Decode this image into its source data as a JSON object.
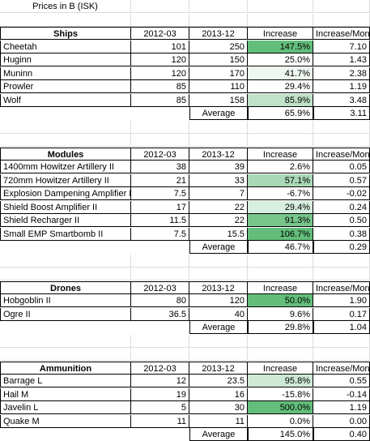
{
  "title": "Prices in B (ISK)",
  "average_label": "Average",
  "sections": [
    {
      "name": "Ships",
      "columns": [
        "2012-03",
        "2013-12",
        "Increase",
        "Increase/Month"
      ],
      "rows": [
        {
          "item": "Cheetah",
          "p2012": "101",
          "p2013": "250",
          "increase": "147.5%",
          "per_month": "7.10",
          "fill": "#63be7b"
        },
        {
          "item": "Huginn",
          "p2012": "120",
          "p2013": "150",
          "increase": "25.0%",
          "per_month": "1.43",
          "fill": "#ffffff"
        },
        {
          "item": "Muninn",
          "p2012": "120",
          "p2013": "170",
          "increase": "41.7%",
          "per_month": "2.38",
          "fill": "#eef7f0"
        },
        {
          "item": "Prowler",
          "p2012": "85",
          "p2013": "110",
          "increase": "29.4%",
          "per_month": "1.19",
          "fill": "#ffffff"
        },
        {
          "item": "Wolf",
          "p2012": "85",
          "p2013": "158",
          "increase": "85.9%",
          "per_month": "3.48",
          "fill": "#bfe2c9"
        }
      ],
      "average": {
        "increase": "65.9%",
        "per_month": "3.11"
      }
    },
    {
      "name": "Modules",
      "columns": [
        "2012-03",
        "2013-12",
        "Increase",
        "Increase/Month"
      ],
      "rows": [
        {
          "item": "1400mm Howitzer Artillery II",
          "p2012": "38",
          "p2013": "39",
          "increase": "2.6%",
          "per_month": "0.05",
          "fill": "#ffffff"
        },
        {
          "item": "720mm Howitzer Artillery II",
          "p2012": "21",
          "p2013": "33",
          "increase": "57.1%",
          "per_month": "0.57",
          "fill": "#a8d8b5"
        },
        {
          "item": "Explosion Dampening Amplifier II",
          "p2012": "7.5",
          "p2013": "7",
          "increase": "-6.7%",
          "per_month": "-0.02",
          "fill": "#ffffff"
        },
        {
          "item": "Shield Boost Amplifier II",
          "p2012": "17",
          "p2013": "22",
          "increase": "29.4%",
          "per_month": "0.24",
          "fill": "#d8eedf"
        },
        {
          "item": "Shield Recharger II",
          "p2012": "11.5",
          "p2013": "22",
          "increase": "91.3%",
          "per_month": "0.50",
          "fill": "#78c68c"
        },
        {
          "item": "Small EMP Smartbomb II",
          "p2012": "7.5",
          "p2013": "15.5",
          "increase": "106.7%",
          "per_month": "0.38",
          "fill": "#63be7b"
        }
      ],
      "average": {
        "increase": "46.7%",
        "per_month": "0.29"
      }
    },
    {
      "name": "Drones",
      "columns": [
        "2012-03",
        "2013-12",
        "Increase",
        "Increase/Month"
      ],
      "rows": [
        {
          "item": "Hobgoblin II",
          "p2012": "80",
          "p2013": "120",
          "increase": "50.0%",
          "per_month": "1.90",
          "fill": "#63be7b"
        },
        {
          "item": "Ogre II",
          "p2012": "36.5",
          "p2013": "40",
          "increase": "9.6%",
          "per_month": "0.17",
          "fill": "#ffffff"
        }
      ],
      "average": {
        "increase": "29.8%",
        "per_month": "1.04"
      }
    },
    {
      "name": "Ammunition",
      "columns": [
        "2012-03",
        "2013-12",
        "Increase",
        "Increase/Month"
      ],
      "rows": [
        {
          "item": "Barrage L",
          "p2012": "12",
          "p2013": "23.5",
          "increase": "95.8%",
          "per_month": "0.55",
          "fill": "#cde9d5"
        },
        {
          "item": "Hail M",
          "p2012": "19",
          "p2013": "16",
          "increase": "-15.8%",
          "per_month": "-0.14",
          "fill": "#ffffff"
        },
        {
          "item": "Javelin L",
          "p2012": "5",
          "p2013": "30",
          "increase": "500.0%",
          "per_month": "1.19",
          "fill": "#63be7b"
        },
        {
          "item": "Quake M",
          "p2012": "11",
          "p2013": "11",
          "increase": "0.0%",
          "per_month": "0.00",
          "fill": "#ffffff"
        }
      ],
      "average": {
        "increase": "145.0%",
        "per_month": "0.40"
      }
    }
  ]
}
